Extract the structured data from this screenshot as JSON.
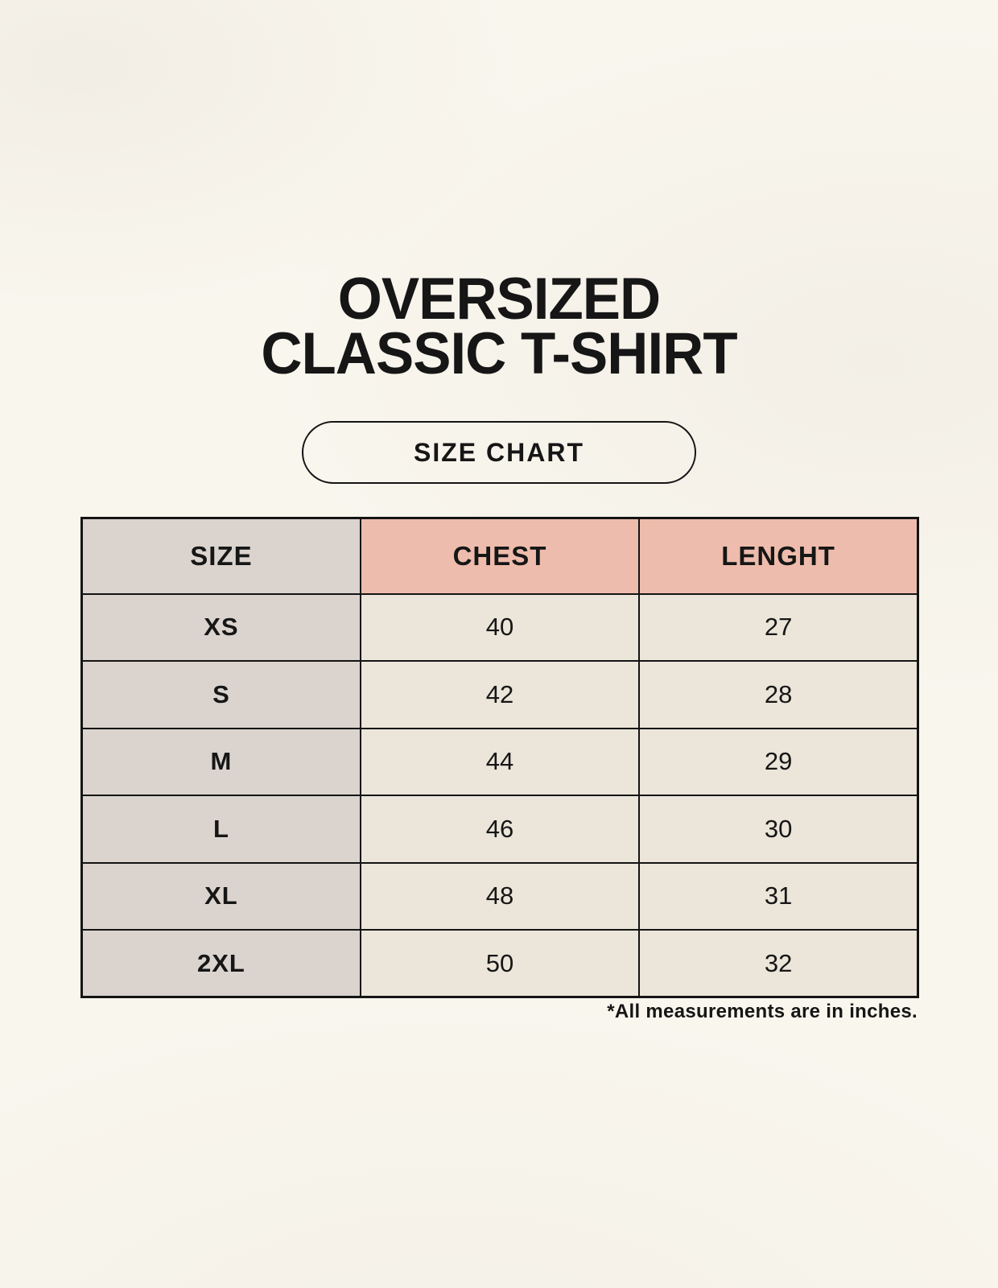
{
  "page": {
    "title_line1": "OVERSIZED",
    "title_line2": "CLASSIC T-SHIRT",
    "badge_label": "SIZE CHART",
    "footnote": "*All measurements are in inches."
  },
  "colors": {
    "background": "#f9f6ee",
    "size_column_fill": "#dad3ce",
    "header_fill": "#eebcac",
    "value_cell_fill": "#ebe5da",
    "border_color": "#141414",
    "text_color": "#161616"
  },
  "chart_data": {
    "type": "table",
    "title": "OVERSIZED CLASSIC T-SHIRT",
    "subtitle": "SIZE CHART",
    "units": "inches",
    "columns": [
      "SIZE",
      "CHEST",
      "LENGHT"
    ],
    "rows": [
      [
        "XS",
        "40",
        "27"
      ],
      [
        "S",
        "42",
        "28"
      ],
      [
        "M",
        "44",
        "29"
      ],
      [
        "L",
        "46",
        "30"
      ],
      [
        "XL",
        "48",
        "31"
      ],
      [
        "2XL",
        "50",
        "32"
      ]
    ],
    "footnote": "*All measurements are in inches."
  }
}
